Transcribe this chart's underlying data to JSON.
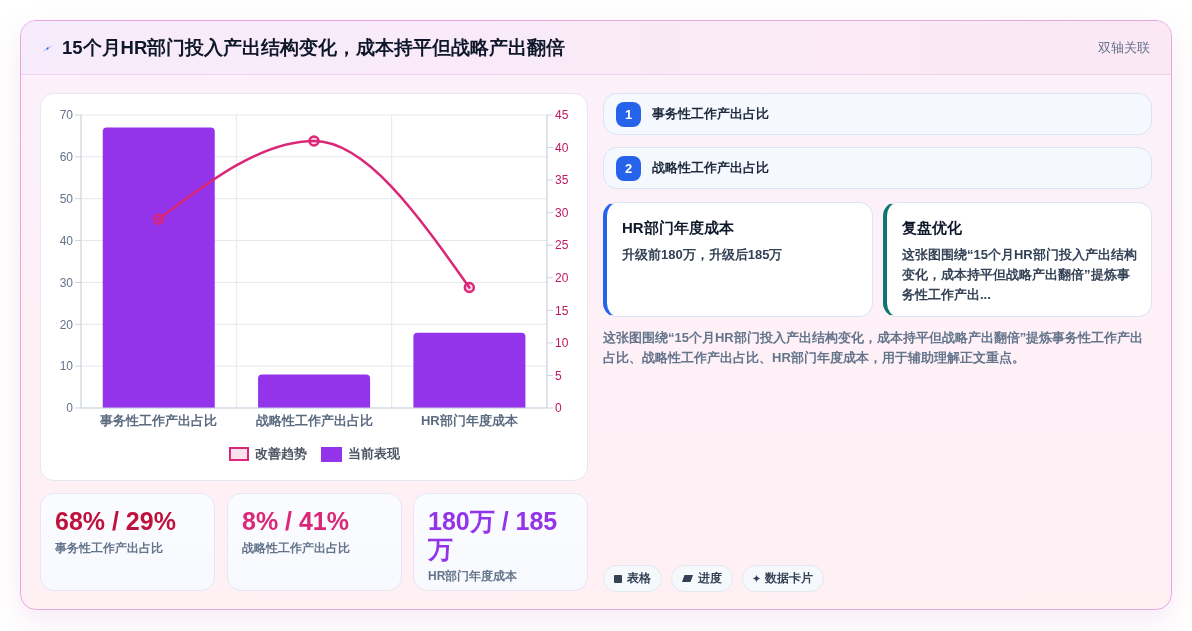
{
  "chart_data": [
    {
      "type": "other",
      "title": "15个月HR部门投入产出结构变化，成本持平但战略产出翻倍",
      "annotations": [
        "双轴关联"
      ]
    },
    {
      "type": "bar",
      "categories": [
        "事务性工作产出占比",
        "战略性工作产出占比",
        "HR部门年度成本"
      ],
      "series": [
        {
          "name": "改善趋势",
          "type": "line",
          "axis": "y2",
          "color": "#db2777",
          "values": [
            29,
            41,
            18.5
          ]
        },
        {
          "name": "当前表现",
          "color": "#9333ea",
          "values": [
            67,
            8,
            18
          ]
        }
      ],
      "ylim": [
        0,
        70
      ],
      "yticks": [
        0,
        10,
        20,
        30,
        40,
        50,
        60,
        70
      ],
      "y2lim": [
        0,
        45
      ],
      "y2ticks": [
        0,
        5,
        10,
        15,
        20,
        25,
        30,
        35,
        40,
        45
      ],
      "grid": true,
      "legend": "bottom",
      "marker": "circle"
    },
    {
      "type": "other",
      "annotations": [
        "1",
        "事务性工作产出占比",
        "2",
        "战略性工作产出占比"
      ]
    },
    {
      "type": "other",
      "title": "HR部门年度成本",
      "annotations": [
        "升级前180万，升级后185万"
      ],
      "color": "#2563eb"
    },
    {
      "type": "other",
      "title": "复盘优化",
      "annotations": [
        "这张图围绕“15个月HR部门投入产出结构变化，成本持平但战略产出翻倍”提炼事务性工作产出..."
      ],
      "color": "#0f766e"
    },
    {
      "type": "other",
      "annotations": [
        "这张图围绕“15个月HR部门投入产出结构变化，成本持平但战略产出翻倍”提炼事务性工作产出占比、战略性工作产出占比、HR部门年度成本，用于辅助理解正文重点。"
      ]
    },
    {
      "type": "other",
      "title": "68% / 29%",
      "subtitle": "事务性工作产出占比",
      "color": "#be123c"
    },
    {
      "type": "other",
      "title": "8% / 41%",
      "subtitle": "战略性工作产出占比",
      "color": "#db2777"
    },
    {
      "type": "other",
      "title": "180万 / 185万",
      "subtitle": "HR部门年度成本",
      "color": "#9333ea"
    },
    {
      "type": "other",
      "annotations": [
        "表格",
        "进度",
        "数据卡片"
      ]
    }
  ]
}
